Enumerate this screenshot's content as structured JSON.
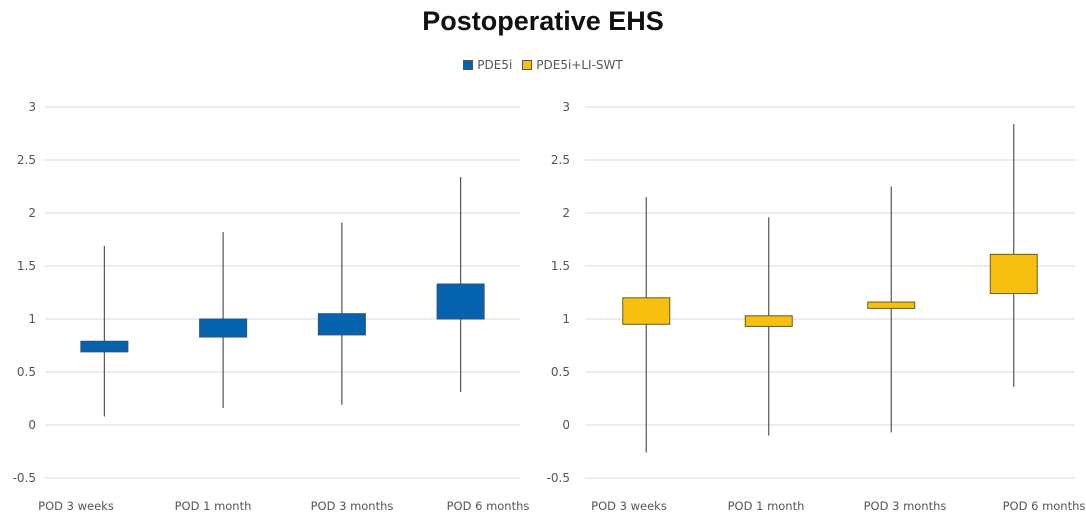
{
  "title": "Postoperative EHS",
  "legend": [
    {
      "label": "PDE5i",
      "color": "#0563AD"
    },
    {
      "label": "PDE5i+LI-SWT",
      "color": "#F7C010"
    }
  ],
  "chart_data": [
    {
      "type": "box",
      "series": "PDE5i",
      "color": "#0563AD",
      "border_color": "#2E4F7A",
      "ylim": [
        -0.5,
        3
      ],
      "yticks": [
        -0.5,
        0,
        0.5,
        1,
        1.5,
        2,
        2.5,
        3
      ],
      "ytick_labels": [
        "-0.5",
        "0",
        "0.5",
        "1",
        "1.5",
        "2",
        "2.5",
        "3"
      ],
      "grid": true,
      "categories": [
        "POD 3 weeks",
        "POD 1 month",
        "POD 3 months",
        "POD 6 months"
      ],
      "boxes": [
        {
          "whisker_low": 0.08,
          "q1": 0.69,
          "q3": 0.79,
          "whisker_high": 1.69
        },
        {
          "whisker_low": 0.16,
          "q1": 0.83,
          "q3": 1.0,
          "whisker_high": 1.82
        },
        {
          "whisker_low": 0.19,
          "q1": 0.85,
          "q3": 1.05,
          "whisker_high": 1.91
        },
        {
          "whisker_low": 0.31,
          "q1": 1.0,
          "q3": 1.33,
          "whisker_high": 2.34
        }
      ]
    },
    {
      "type": "box",
      "series": "PDE5i+LI-SWT",
      "color": "#F7C010",
      "border_color": "#6B5A1E",
      "ylim": [
        -0.5,
        3
      ],
      "yticks": [
        -0.5,
        0,
        0.5,
        1,
        1.5,
        2,
        2.5,
        3
      ],
      "ytick_labels": [
        "-0.5",
        "0",
        "0.5",
        "1",
        "1.5",
        "2",
        "2.5",
        "3"
      ],
      "grid": true,
      "categories": [
        "POD 3 weeks",
        "POD 1 month",
        "POD 3 months",
        "POD 6 months"
      ],
      "boxes": [
        {
          "whisker_low": -0.26,
          "q1": 0.95,
          "q3": 1.2,
          "whisker_high": 2.15
        },
        {
          "whisker_low": -0.1,
          "q1": 0.93,
          "q3": 1.03,
          "whisker_high": 1.96
        },
        {
          "whisker_low": -0.07,
          "q1": 1.1,
          "q3": 1.16,
          "whisker_high": 2.25
        },
        {
          "whisker_low": 0.36,
          "q1": 1.24,
          "q3": 1.61,
          "whisker_high": 2.84
        }
      ]
    }
  ]
}
